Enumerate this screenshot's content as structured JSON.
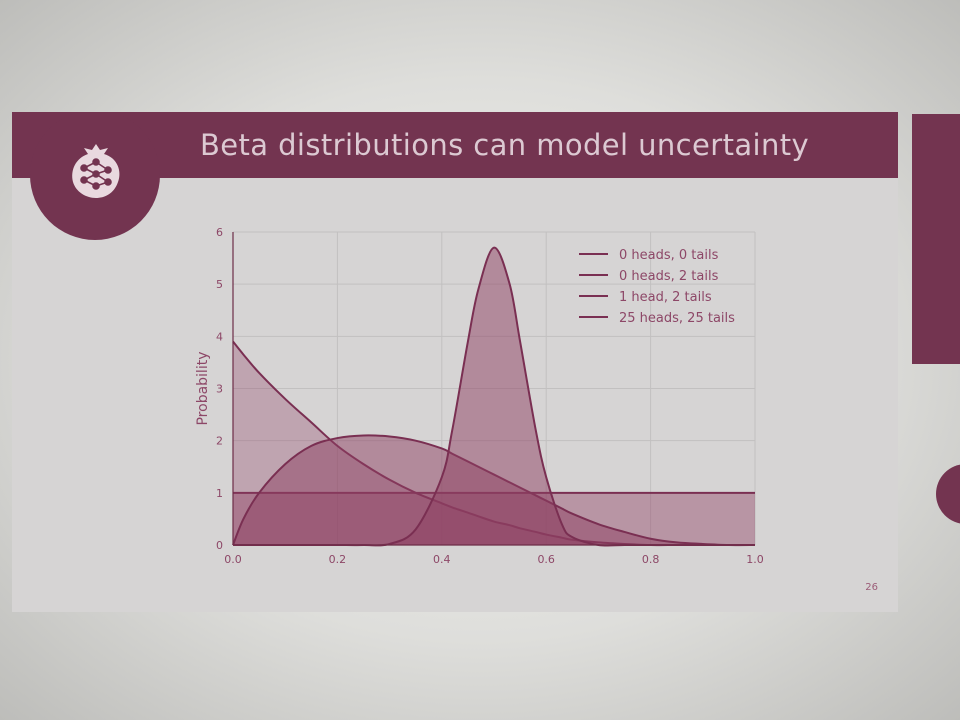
{
  "slide": {
    "title": "Beta distributions can model uncertainty",
    "page_number": "26"
  },
  "colors": {
    "brand": "#733450",
    "slide_bg": "#d6d4d4",
    "title_text": "#dcc9d2",
    "grid": "#c2c0c0",
    "series_fill": "#8e3f62",
    "series_line": "#7a2f52"
  },
  "icons": {
    "logo": "pomegranate-network-logo"
  },
  "chart_data": {
    "type": "area",
    "title": "",
    "xlabel": "",
    "ylabel": "Probability",
    "xlim": [
      0.0,
      1.0
    ],
    "ylim": [
      0,
      6
    ],
    "xticks": [
      "0.0",
      "0.2",
      "0.4",
      "0.6",
      "0.8",
      "1.0"
    ],
    "yticks": [
      "0",
      "1",
      "2",
      "3",
      "4",
      "5",
      "6"
    ],
    "grid": true,
    "legend_position": "top-right",
    "x": [
      0.0,
      0.02,
      0.05,
      0.1,
      0.15,
      0.2,
      0.25,
      0.3,
      0.35,
      0.4,
      0.42,
      0.45,
      0.47,
      0.5,
      0.53,
      0.55,
      0.58,
      0.6,
      0.63,
      0.65,
      0.7,
      0.75,
      0.8,
      0.85,
      0.9,
      0.95,
      1.0
    ],
    "series": [
      {
        "name": "0 heads, 0 tails",
        "values": [
          1,
          1,
          1,
          1,
          1,
          1,
          1,
          1,
          1,
          1,
          1,
          1,
          1,
          1,
          1,
          1,
          1,
          1,
          1,
          1,
          1,
          1,
          1,
          1,
          1,
          1,
          1
        ]
      },
      {
        "name": "0 heads, 2 tails",
        "values": [
          3.9,
          3.65,
          3.3,
          2.8,
          2.35,
          1.9,
          1.55,
          1.25,
          1.0,
          0.8,
          0.72,
          0.62,
          0.55,
          0.45,
          0.38,
          0.32,
          0.25,
          0.2,
          0.14,
          0.1,
          0.05,
          0.02,
          0.0,
          0.0,
          0.0,
          0.0,
          0.0
        ]
      },
      {
        "name": "1 head, 2 tails",
        "values": [
          0,
          0.5,
          1.0,
          1.55,
          1.9,
          2.05,
          2.1,
          2.08,
          2.0,
          1.85,
          1.75,
          1.6,
          1.5,
          1.35,
          1.2,
          1.1,
          0.95,
          0.85,
          0.7,
          0.6,
          0.4,
          0.25,
          0.12,
          0.05,
          0.02,
          0.0,
          0.0
        ]
      },
      {
        "name": "25 heads, 25 tails",
        "values": [
          0,
          0,
          0,
          0,
          0,
          0,
          0,
          0.02,
          0.3,
          1.3,
          2.2,
          3.9,
          4.9,
          5.7,
          5.0,
          3.9,
          2.2,
          1.3,
          0.4,
          0.15,
          0.0,
          0.0,
          0.0,
          0.0,
          0.0,
          0.0,
          0.0
        ]
      }
    ]
  }
}
